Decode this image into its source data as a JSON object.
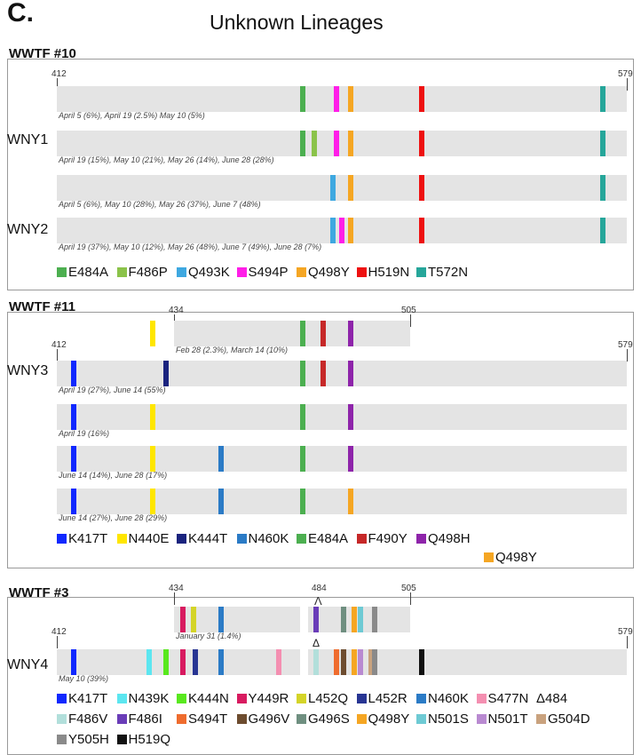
{
  "header": {
    "panel_letter": "C.",
    "title": "Unknown Lineages"
  },
  "colors": {
    "E484A": "#4caf50",
    "F486P": "#8bc34a",
    "Q493K": "#3ea8e0",
    "S494P": "#ff1ee8",
    "Q498Y": "#f5a623",
    "H519N": "#ee1111",
    "T572N": "#26a69a",
    "K417T": "#1028ff",
    "N440E": "#ffe600",
    "K444T": "#1a237e",
    "N460K": "#2b7bc6",
    "F490Y": "#c62828",
    "Q498H": "#8e24aa",
    "N439K": "#5ce6f0",
    "K444N": "#59e81e",
    "Y449R": "#d81b60",
    "L452Q": "#d4d428",
    "L452R": "#283593",
    "S477N": "#f48fb1",
    "DELTA484": "#ffffff",
    "F486V": "#b2dfdb",
    "F486I": "#6a3db8",
    "S494T": "#ef6c2e",
    "G496V": "#6d4c2f",
    "G496S": "#6f8f80",
    "N501S": "#6ecad4",
    "N501T": "#b98ad1",
    "G504D": "#c9a27e",
    "Y505H": "#8a8a8a",
    "H519Q": "#111111"
  },
  "sections": [
    {
      "name": "WWTF #10",
      "axes": [
        {
          "start": 412,
          "end": 579
        }
      ],
      "rows": [
        {
          "label": "",
          "dates": "April 5 (6%), April 19 (2.5%) May 10 (5%)",
          "mutations": [
            "E484A",
            "S494P",
            "Q498Y",
            "H519N",
            "T572N"
          ]
        },
        {
          "label": "WNY1",
          "dates": "April 19 (15%), May 10 (21%), May 26 (14%), June 28 (28%)",
          "mutations": [
            "E484A",
            "F486P",
            "S494P",
            "Q498Y",
            "H519N",
            "T572N"
          ]
        },
        {
          "label": "",
          "dates": "April 5 (6%), May 10 (28%), May 26 (37%), June 7 (48%)",
          "mutations": [
            "Q493K",
            "Q498Y",
            "H519N",
            "T572N"
          ]
        },
        {
          "label": "WNY2",
          "dates": "April 19 (37%), May 10 (12%), May 26 (48%), June 7 (49%), June 28 (7%)",
          "mutations": [
            "Q493K",
            "S494P",
            "Q498Y",
            "H519N",
            "T572N"
          ]
        }
      ],
      "legend": [
        {
          "key": "E484A",
          "label": "E484A"
        },
        {
          "key": "F486P",
          "label": "F486P"
        },
        {
          "key": "Q493K",
          "label": "Q493K"
        },
        {
          "key": "S494P",
          "label": "S494P"
        },
        {
          "key": "Q498Y",
          "label": "Q498Y"
        },
        {
          "key": "H519N",
          "label": "H519N"
        },
        {
          "key": "T572N",
          "label": "T572N"
        }
      ]
    },
    {
      "name": "WWTF #11",
      "axes": [
        {
          "start": 434,
          "end": 505
        },
        {
          "start": 412,
          "end": 579
        }
      ],
      "rows": [
        {
          "label": "",
          "range": [
            434,
            505
          ],
          "dates": "Feb 28 (2.3%), March 14 (10%)",
          "mutations": [
            "N440E",
            "E484A",
            "F490Y",
            "Q498H"
          ]
        },
        {
          "label": "WNY3",
          "dates": "April 19 (27%), June 14 (55%)",
          "mutations": [
            "K417T",
            "K444T",
            "E484A",
            "F490Y",
            "Q498H"
          ]
        },
        {
          "label": "",
          "dates": "April 19 (16%)",
          "mutations": [
            "K417T",
            "N440E",
            "E484A",
            "Q498H"
          ]
        },
        {
          "label": "",
          "dates": "June 14 (14%), June 28 (17%)",
          "mutations": [
            "K417T",
            "N440E",
            "N460K",
            "E484A",
            "Q498H"
          ]
        },
        {
          "label": "",
          "dates": "June 14 (27%), June 28 (29%)",
          "mutations": [
            "K417T",
            "N440E",
            "N460K",
            "E484A",
            "Q498Y"
          ]
        }
      ],
      "legend": [
        {
          "key": "K417T",
          "label": "K417T"
        },
        {
          "key": "N440E",
          "label": "N440E"
        },
        {
          "key": "K444T",
          "label": "K444T"
        },
        {
          "key": "N460K",
          "label": "N460K"
        },
        {
          "key": "E484A",
          "label": "E484A"
        },
        {
          "key": "F490Y",
          "label": "F490Y"
        },
        {
          "key": "Q498H",
          "label": "Q498H"
        },
        {
          "key": "Q498Y",
          "label": "Q498Y"
        }
      ]
    },
    {
      "name": "WWTF #3",
      "axes": [
        {
          "start": 434,
          "end": 505,
          "mid": 484
        },
        {
          "start": 412,
          "end": 579
        }
      ],
      "rows": [
        {
          "label": "",
          "range": [
            434,
            505
          ],
          "dates": "January 31 (1.4%)",
          "mutations": [
            "Y449R",
            "L452Q",
            "N460K",
            "DELTA484",
            "F486I",
            "G496S",
            "Q498Y",
            "N501S",
            "Y505H"
          ]
        },
        {
          "label": "WNY4",
          "dates": "May 10 (39%)",
          "mutations": [
            "K417T",
            "N439K",
            "K444N",
            "Y449R",
            "L452R",
            "N460K",
            "S477N",
            "DELTA484",
            "F486V",
            "S494T",
            "G496V",
            "Q498Y",
            "N501T",
            "G504D",
            "Y505H",
            "H519Q"
          ]
        }
      ],
      "legend": [
        {
          "key": "K417T",
          "label": "K417T"
        },
        {
          "key": "N439K",
          "label": "N439K"
        },
        {
          "key": "K444N",
          "label": "K444N"
        },
        {
          "key": "Y449R",
          "label": "Y449R"
        },
        {
          "key": "L452Q",
          "label": "L452Q"
        },
        {
          "key": "L452R",
          "label": "L452R"
        },
        {
          "key": "N460K",
          "label": "N460K"
        },
        {
          "key": "S477N",
          "label": "S477N"
        },
        {
          "key": "DELTA484",
          "label": "Δ484"
        },
        {
          "key": "F486V",
          "label": "F486V"
        },
        {
          "key": "F486I",
          "label": "F486I"
        },
        {
          "key": "S494T",
          "label": "S494T"
        },
        {
          "key": "G496V",
          "label": "G496V"
        },
        {
          "key": "G496S",
          "label": "G496S"
        },
        {
          "key": "Q498Y",
          "label": "Q498Y"
        },
        {
          "key": "N501S",
          "label": "N501S"
        },
        {
          "key": "N501T",
          "label": "N501T"
        },
        {
          "key": "G504D",
          "label": "G504D"
        },
        {
          "key": "Y505H",
          "label": "Y505H"
        },
        {
          "key": "H519Q",
          "label": "H519Q"
        }
      ]
    }
  ]
}
